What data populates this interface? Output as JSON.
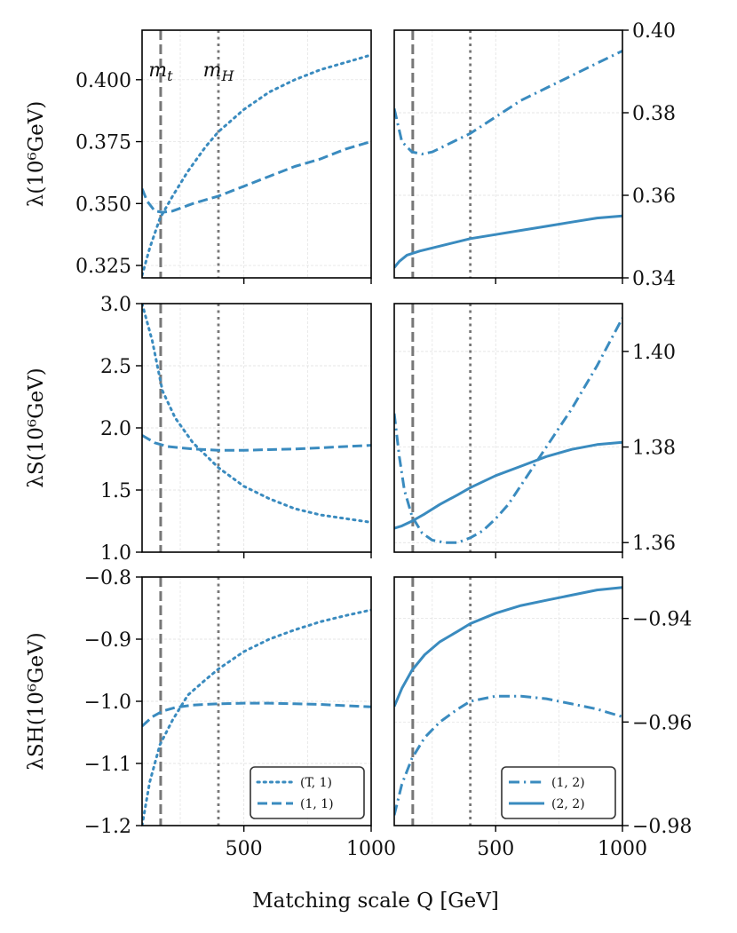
{
  "chart_data": {
    "type": "line",
    "xlabel": "Matching scale Q [GeV]",
    "xlim": [
      100,
      1000
    ],
    "xticks": [
      500,
      1000
    ],
    "colors": {
      "series": "#3a8bbf",
      "ref": "#777777",
      "grid": "#dddddd"
    },
    "ref_lines": [
      {
        "name": "m_t",
        "label": "m_t",
        "x": 173,
        "style": "dashed"
      },
      {
        "name": "m_H",
        "label": "m_H",
        "x": 400,
        "style": "dotted"
      }
    ],
    "rows": [
      {
        "ylabel": "λ(10⁶GeV)",
        "left": {
          "ylim": [
            0.32,
            0.42
          ],
          "yticks": [
            0.325,
            0.35,
            0.375,
            0.4
          ],
          "ytick_labels": [
            "0.325",
            "0.350",
            "0.375",
            "0.400"
          ]
        },
        "right": {
          "ylim": [
            0.34,
            0.4
          ],
          "yticks": [
            0.34,
            0.36,
            0.38,
            0.4
          ],
          "ytick_labels": [
            "0.34",
            "0.36",
            "0.38",
            "0.40"
          ]
        },
        "show_ref_labels": true
      },
      {
        "ylabel": "λS(10⁶GeV)",
        "left": {
          "ylim": [
            1.0,
            3.0
          ],
          "yticks": [
            1.0,
            1.5,
            2.0,
            2.5,
            3.0
          ],
          "ytick_labels": [
            "1.0",
            "1.5",
            "2.0",
            "2.5",
            "3.0"
          ]
        },
        "right": {
          "ylim": [
            1.358,
            1.41
          ],
          "yticks": [
            1.36,
            1.38,
            1.4
          ],
          "ytick_labels": [
            "1.36",
            "1.38",
            "1.40"
          ]
        },
        "show_ref_labels": false
      },
      {
        "ylabel": "λSH(10⁶GeV)",
        "left": {
          "ylim": [
            -1.2,
            -0.8
          ],
          "yticks": [
            -1.2,
            -1.1,
            -1.0,
            -0.9,
            -0.8
          ],
          "ytick_labels": [
            "−1.2",
            "−1.1",
            "−1.0",
            "−0.9",
            "−0.8"
          ]
        },
        "right": {
          "ylim": [
            -0.98,
            -0.932
          ],
          "yticks": [
            -0.98,
            -0.96,
            -0.94
          ],
          "ytick_labels": [
            "−0.98",
            "−0.96",
            "−0.94"
          ]
        },
        "show_ref_labels": false
      }
    ],
    "series": [
      {
        "name": "(T,1)",
        "column": "left",
        "row": 0,
        "style": "dotted",
        "x": [
          100,
          130,
          170,
          220,
          280,
          350,
          400,
          500,
          600,
          700,
          800,
          900,
          1000
        ],
        "y": [
          0.321,
          0.332,
          0.344,
          0.353,
          0.363,
          0.373,
          0.379,
          0.388,
          0.395,
          0.4,
          0.404,
          0.407,
          0.41
        ]
      },
      {
        "name": "(1,1)",
        "column": "left",
        "row": 0,
        "style": "dashed",
        "x": [
          100,
          120,
          150,
          180,
          220,
          260,
          300,
          400,
          500,
          600,
          700,
          800,
          900,
          1000
        ],
        "y": [
          0.356,
          0.351,
          0.347,
          0.3465,
          0.347,
          0.3485,
          0.35,
          0.353,
          0.357,
          0.361,
          0.365,
          0.368,
          0.372,
          0.375
        ]
      },
      {
        "name": "(1,2)",
        "column": "right",
        "row": 0,
        "style": "dashdot",
        "x": [
          100,
          130,
          170,
          210,
          250,
          300,
          350,
          400,
          500,
          600,
          700,
          800,
          900,
          1000
        ],
        "y": [
          0.381,
          0.373,
          0.3705,
          0.37,
          0.3705,
          0.372,
          0.3735,
          0.375,
          0.379,
          0.383,
          0.386,
          0.389,
          0.392,
          0.395
        ]
      },
      {
        "name": "(2,2)",
        "column": "right",
        "row": 0,
        "style": "solid",
        "x": [
          100,
          120,
          150,
          200,
          300,
          400,
          500,
          600,
          700,
          800,
          900,
          1000
        ],
        "y": [
          0.3425,
          0.344,
          0.3455,
          0.3465,
          0.348,
          0.3495,
          0.3505,
          0.3515,
          0.3525,
          0.3535,
          0.3545,
          0.355
        ]
      },
      {
        "name": "(T,1)",
        "column": "left",
        "row": 1,
        "style": "dotted",
        "x": [
          100,
          140,
          180,
          230,
          300,
          400,
          500,
          600,
          700,
          800,
          900,
          1000
        ],
        "y": [
          3.0,
          2.7,
          2.3,
          2.08,
          1.88,
          1.68,
          1.53,
          1.43,
          1.35,
          1.3,
          1.27,
          1.24
        ]
      },
      {
        "name": "(1,1)",
        "column": "left",
        "row": 1,
        "style": "dashed",
        "x": [
          100,
          150,
          200,
          300,
          400,
          500,
          600,
          700,
          800,
          900,
          1000
        ],
        "y": [
          1.94,
          1.88,
          1.85,
          1.83,
          1.82,
          1.82,
          1.825,
          1.83,
          1.84,
          1.85,
          1.86
        ]
      },
      {
        "name": "(1,2)",
        "column": "right",
        "row": 1,
        "style": "dashdot",
        "x": [
          100,
          120,
          140,
          170,
          210,
          250,
          300,
          350,
          400,
          450,
          500,
          550,
          600,
          700,
          800,
          900,
          1000
        ],
        "y": [
          1.387,
          1.378,
          1.371,
          1.3655,
          1.362,
          1.3605,
          1.36,
          1.36,
          1.361,
          1.3625,
          1.365,
          1.368,
          1.372,
          1.38,
          1.388,
          1.397,
          1.407
        ]
      },
      {
        "name": "(2,2)",
        "column": "right",
        "row": 1,
        "style": "solid",
        "x": [
          100,
          130,
          170,
          220,
          280,
          350,
          400,
          500,
          600,
          700,
          800,
          900,
          1000
        ],
        "y": [
          1.363,
          1.3635,
          1.3645,
          1.366,
          1.368,
          1.37,
          1.3715,
          1.374,
          1.376,
          1.378,
          1.3795,
          1.3805,
          1.381
        ]
      },
      {
        "name": "(T,1)",
        "column": "left",
        "row": 2,
        "style": "dotted",
        "x": [
          100,
          130,
          170,
          220,
          280,
          350,
          400,
          500,
          600,
          700,
          800,
          900,
          1000
        ],
        "y": [
          -1.2,
          -1.13,
          -1.07,
          -1.03,
          -0.99,
          -0.965,
          -0.948,
          -0.92,
          -0.9,
          -0.885,
          -0.872,
          -0.862,
          -0.853
        ]
      },
      {
        "name": "(1,1)",
        "column": "left",
        "row": 2,
        "style": "dashed",
        "x": [
          100,
          140,
          180,
          230,
          300,
          400,
          500,
          600,
          700,
          800,
          900,
          1000
        ],
        "y": [
          -1.04,
          -1.025,
          -1.016,
          -1.01,
          -1.006,
          -1.004,
          -1.003,
          -1.003,
          -1.004,
          -1.005,
          -1.007,
          -1.009
        ]
      },
      {
        "name": "(1,2)",
        "column": "right",
        "row": 2,
        "style": "dashdot",
        "x": [
          100,
          130,
          170,
          220,
          280,
          350,
          400,
          500,
          600,
          700,
          800,
          900,
          1000
        ],
        "y": [
          -0.978,
          -0.972,
          -0.967,
          -0.963,
          -0.96,
          -0.9575,
          -0.956,
          -0.955,
          -0.955,
          -0.9555,
          -0.9565,
          -0.9575,
          -0.959
        ]
      },
      {
        "name": "(2,2)",
        "column": "right",
        "row": 2,
        "style": "solid",
        "x": [
          100,
          130,
          170,
          220,
          280,
          350,
          400,
          500,
          600,
          700,
          800,
          900,
          1000
        ],
        "y": [
          -0.957,
          -0.9535,
          -0.95,
          -0.947,
          -0.9445,
          -0.9425,
          -0.941,
          -0.939,
          -0.9375,
          -0.9365,
          -0.9355,
          -0.9345,
          -0.934
        ]
      }
    ],
    "legends": [
      {
        "name": "legend-left",
        "row": 2,
        "column": "left",
        "placement": "lower-right",
        "entries": [
          {
            "label": "(T, 1)",
            "style": "dotted"
          },
          {
            "label": "(1, 1)",
            "style": "dashed"
          }
        ]
      },
      {
        "name": "legend-right",
        "row": 2,
        "column": "right",
        "placement": "lower-right",
        "entries": [
          {
            "label": "(1, 2)",
            "style": "dashdot"
          },
          {
            "label": "(2, 2)",
            "style": "solid"
          }
        ]
      }
    ]
  }
}
